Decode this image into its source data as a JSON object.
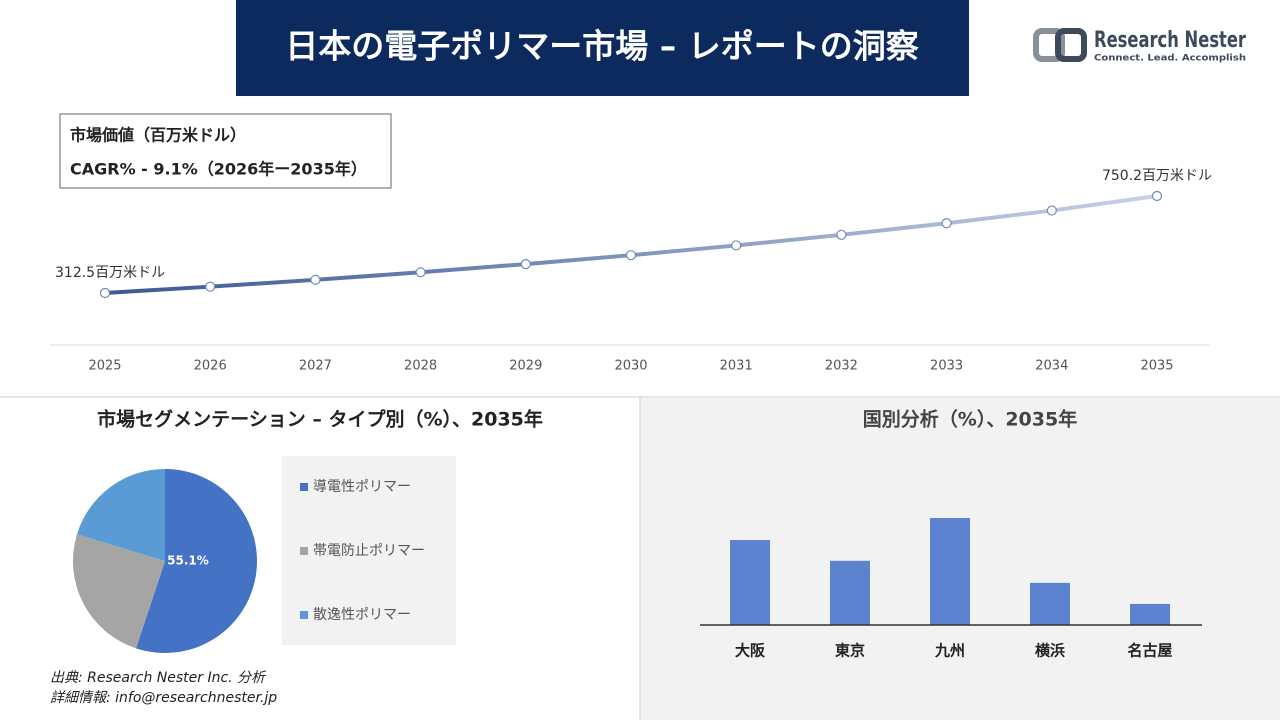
{
  "header": {
    "title": "日本の電子ポリマー市場 – レポートの洞察",
    "logo_name": "Research Nester",
    "logo_tagline": "Connect. Lead. Accomplish"
  },
  "info_box": {
    "line1": "市場価値（百万米ドル）",
    "line2": "CAGR% - 9.1%（2026年ー2035年）"
  },
  "chart_data": [
    {
      "type": "line",
      "categories": [
        "2025",
        "2026",
        "2027",
        "2028",
        "2029",
        "2030",
        "2031",
        "2032",
        "2033",
        "2034",
        "2035"
      ],
      "values": [
        312.5,
        341.0,
        372.0,
        405.9,
        442.8,
        483.1,
        527.1,
        575.1,
        627.4,
        684.5,
        750.2
      ],
      "value_labels": [
        "312.5百万米ドル",
        null,
        null,
        null,
        null,
        null,
        null,
        null,
        null,
        null,
        "750.2百万米ドル"
      ],
      "colors": [
        "#3a5896",
        "#c9d1e5"
      ]
    },
    {
      "type": "pie",
      "title": "市場セグメンテーション – タイプ別（%）、2035年",
      "series": [
        {
          "name": "導電性ポリマー",
          "color": "#4472c4",
          "value": 55.1,
          "value_label": "55.1%"
        },
        {
          "name": "帯電防止ポリマー",
          "color": "#a5a5a5",
          "value": 24.6
        },
        {
          "name": "散逸性ポリマー",
          "color": "#5b9bd5",
          "value": 20.3
        }
      ]
    },
    {
      "type": "bar",
      "title": "国別分析（%）、2035年",
      "categories": [
        "大阪",
        "東京",
        "九州",
        "横浜",
        "名古屋"
      ],
      "values": [
        26.6,
        20.1,
        33.5,
        13.2,
        6.6
      ],
      "color": "#5b83cf"
    }
  ],
  "footer": {
    "source": "出典: Research Nester Inc. 分析",
    "contact": "詳細情報: info@researchnester.jp"
  }
}
